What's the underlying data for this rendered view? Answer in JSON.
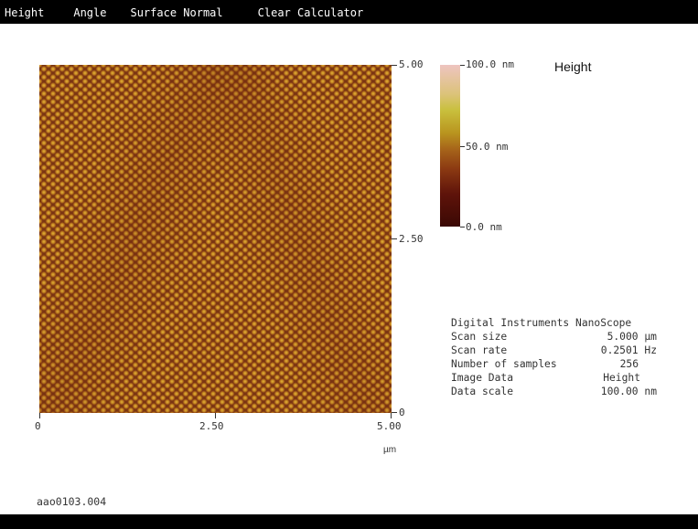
{
  "menu": {
    "items": [
      {
        "label": "Height"
      },
      {
        "label": "Angle"
      },
      {
        "label": "Surface Normal"
      },
      {
        "label": "Clear Calculator"
      }
    ]
  },
  "image_panel": {
    "y_ticks": [
      "5.00",
      "2.50",
      "0"
    ],
    "x_ticks": [
      "0",
      "2.50",
      "5.00"
    ],
    "x_unit": "µm"
  },
  "colorbar": {
    "title": "Height",
    "labels": [
      "100.0 nm",
      "50.0 nm",
      "0.0 nm"
    ]
  },
  "info": {
    "header": "Digital Instruments NanoScope",
    "rows": [
      {
        "label": "Scan size",
        "value": "5.000 µm"
      },
      {
        "label": "Scan rate",
        "value": "0.2501 Hz"
      },
      {
        "label": "Number of samples",
        "value": "256"
      },
      {
        "label": "Image Data",
        "value": "Height"
      },
      {
        "label": "Data scale",
        "value": "100.00 nm"
      }
    ]
  },
  "filename": "aao0103.004",
  "colors": {
    "menu_bg": "#000000",
    "menu_text": "#ffffff",
    "background": "#ffffff"
  }
}
